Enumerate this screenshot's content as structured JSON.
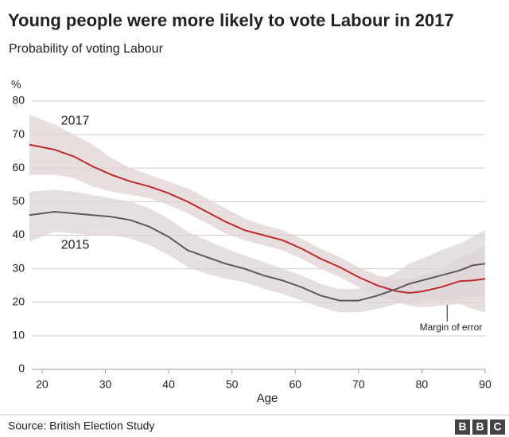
{
  "chart_data": {
    "type": "line",
    "title": "Young people were more likely to vote Labour in 2017",
    "subtitle": "Probability of voting Labour",
    "ylabel": "%",
    "xlabel": "Age",
    "source": "Source: British Election Study",
    "logo": [
      "B",
      "B",
      "C"
    ],
    "annotation": "Margin of error",
    "annotation_x": 84,
    "x": [
      18,
      22,
      25,
      28,
      31,
      34,
      37,
      40,
      43,
      46,
      49,
      52,
      55,
      58,
      61,
      64,
      67,
      70,
      73,
      76,
      78,
      80,
      83,
      86,
      88,
      90
    ],
    "series": [
      {
        "name": "2017",
        "color": "#c0282d",
        "band_color": "#e2d3d3",
        "values": [
          67,
          65.5,
          63.5,
          60.5,
          58,
          56,
          54.5,
          52.5,
          50,
          47,
          44,
          41.5,
          40,
          38.5,
          36,
          33,
          30.5,
          27.5,
          25,
          23.3,
          22.8,
          23.2,
          24.5,
          26.3,
          26.5,
          27
        ],
        "upper": [
          76,
          73,
          70,
          67,
          63,
          60,
          58,
          56,
          54,
          51,
          48,
          45,
          43,
          41.5,
          39,
          36,
          33.5,
          30.5,
          28,
          27,
          27,
          28,
          30,
          33,
          35,
          37
        ],
        "lower": [
          58,
          58,
          57,
          54.5,
          53,
          52,
          51,
          49,
          46.5,
          43.5,
          40.5,
          38.5,
          37,
          35.5,
          33,
          30,
          27.5,
          24.5,
          22,
          20,
          19,
          18.5,
          19,
          19.5,
          18,
          17
        ],
        "label_x": 23,
        "label_y": 74
      },
      {
        "name": "2015",
        "color": "#5a5a5a",
        "band_color": "#dcd6d6",
        "values": [
          46,
          47,
          46.5,
          46,
          45.5,
          44.5,
          42.5,
          39.5,
          35.5,
          33.5,
          31.5,
          30,
          28,
          26.5,
          24.5,
          22,
          20.5,
          20.5,
          22,
          24,
          25.5,
          26.5,
          28,
          29.5,
          31,
          31.5
        ],
        "upper": [
          53,
          53.5,
          53,
          52,
          51,
          50,
          48,
          45,
          41,
          38.5,
          36,
          34,
          32,
          30,
          28,
          25.5,
          24,
          24,
          26,
          29,
          31.5,
          33,
          35.5,
          37.5,
          39.5,
          41.5
        ],
        "lower": [
          38,
          41,
          40.5,
          40,
          40,
          39,
          37,
          34,
          30.5,
          28.5,
          27,
          26,
          24,
          22.5,
          20.5,
          18.5,
          17,
          17,
          18,
          19.5,
          20,
          20.5,
          20.5,
          21,
          21.5,
          22
        ],
        "label_x": 23,
        "label_y": 37
      }
    ],
    "xlim": [
      18,
      90
    ],
    "ylim": [
      0,
      80
    ],
    "xticks": [
      20,
      30,
      40,
      50,
      60,
      70,
      80,
      90
    ],
    "yticks": [
      0,
      10,
      20,
      30,
      40,
      50,
      60,
      70,
      80
    ],
    "grid": true
  }
}
